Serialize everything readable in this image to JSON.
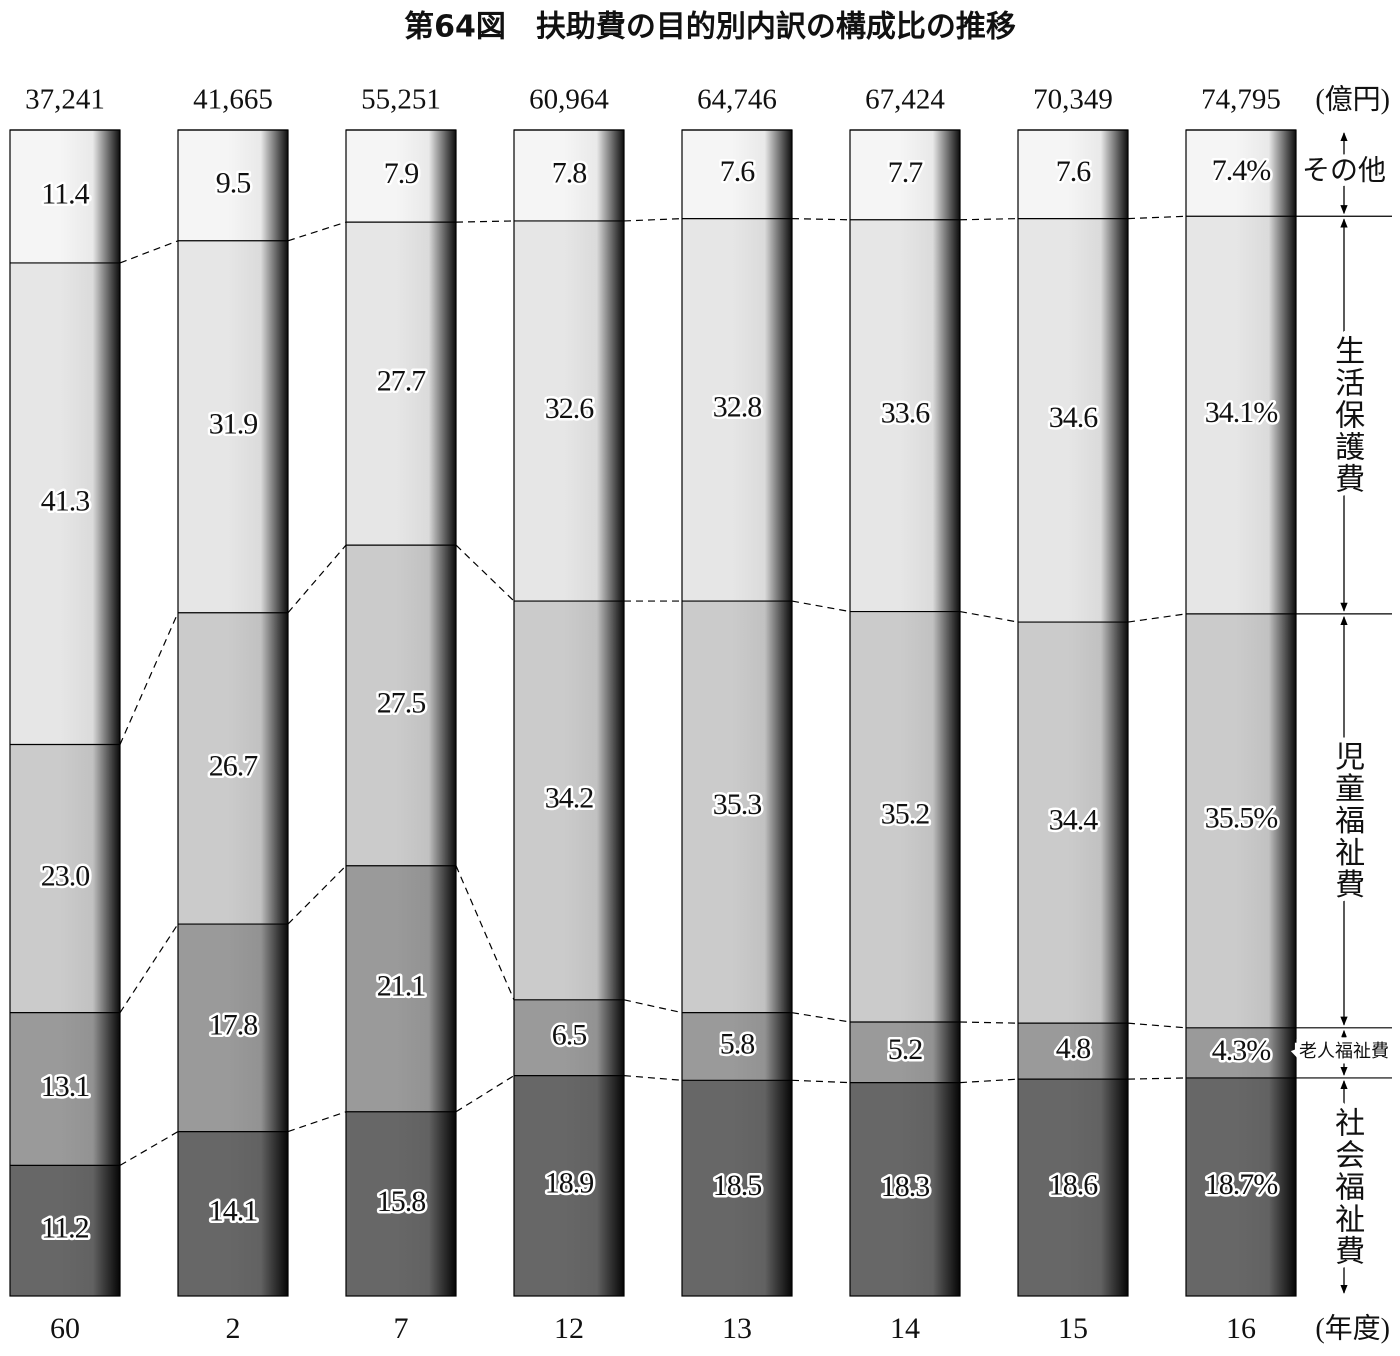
{
  "chart_data": {
    "type": "stacked_bar",
    "title": "第64図　扶助費の目的別内訳の構成比の推移",
    "categories": [
      "60",
      "2",
      "7",
      "12",
      "13",
      "14",
      "15",
      "16"
    ],
    "x_unit": "(年度)",
    "totals": {
      "unit": "(億円)",
      "values": [
        37241,
        41665,
        55251,
        60964,
        64746,
        67424,
        70349,
        74795
      ],
      "value_labels": [
        "37,241",
        "41,665",
        "55,251",
        "60,964",
        "64,746",
        "67,424",
        "70,349",
        "74,795"
      ]
    },
    "ylim": [
      0,
      100
    ],
    "series": [
      {
        "name": "社会福祉費",
        "color": "#676767",
        "values": [
          11.2,
          14.1,
          15.8,
          18.9,
          18.5,
          18.3,
          18.6,
          18.7
        ],
        "value_labels": [
          "11.2",
          "14.1",
          "15.8",
          "18.9",
          "18.5",
          "18.3",
          "18.6",
          "18.7%"
        ]
      },
      {
        "name": "老人福祉費",
        "color": "#9a9a9a",
        "values": [
          13.1,
          17.8,
          21.1,
          6.5,
          5.8,
          5.2,
          4.8,
          4.3
        ],
        "value_labels": [
          "13.1",
          "17.8",
          "21.1",
          "6.5",
          "5.8",
          "5.2",
          "4.8",
          "4.3%"
        ]
      },
      {
        "name": "児童福祉費",
        "color": "#cbcbcb",
        "values": [
          23.0,
          26.7,
          27.5,
          34.2,
          35.3,
          35.2,
          34.4,
          35.5
        ],
        "value_labels": [
          "23.0",
          "26.7",
          "27.5",
          "34.2",
          "35.3",
          "35.2",
          "34.4",
          "35.5%"
        ]
      },
      {
        "name": "生活保護費",
        "color": "#e6e6e6",
        "values": [
          41.3,
          31.9,
          27.7,
          32.6,
          32.8,
          33.6,
          34.6,
          34.1
        ],
        "value_labels": [
          "41.3",
          "31.9",
          "27.7",
          "32.6",
          "32.8",
          "33.6",
          "34.6",
          "34.1%"
        ]
      },
      {
        "name": "その他",
        "color": "#f5f5f5",
        "values": [
          11.4,
          9.5,
          7.9,
          7.8,
          7.6,
          7.7,
          7.6,
          7.4
        ],
        "value_labels": [
          "11.4",
          "9.5",
          "7.9",
          "7.8",
          "7.6",
          "7.7",
          "7.6",
          "7.4%"
        ]
      }
    ]
  }
}
